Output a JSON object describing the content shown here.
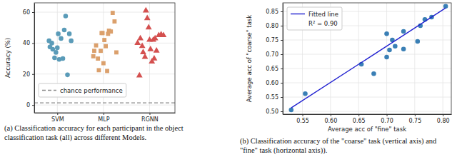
{
  "chart_data": [
    {
      "type": "scatter",
      "title": "(a) Classification accuracy for each participant in the object classification task (all) across different Models.",
      "ylabel": "Accuracy (%)",
      "xlim": [
        0.5,
        3.55
      ],
      "xticks": [
        {
          "value": 1,
          "label": "SVM"
        },
        {
          "value": 2,
          "label": "MLP"
        },
        {
          "value": 3,
          "label": "RGNN"
        }
      ],
      "ylim": [
        -5,
        66
      ],
      "yticks": [
        0,
        20,
        40,
        60
      ],
      "grid": true,
      "legend": "lower left",
      "series": [
        {
          "color": "#5a9bb8",
          "marker": "circle",
          "x": [
            0.82,
            0.84,
            0.88,
            0.9,
            0.94,
            0.97,
            1.0,
            1.02,
            1.04,
            1.08,
            1.12,
            1.15,
            1.18,
            1.22,
            1.26,
            1.3
          ],
          "values": [
            41.5,
            37.5,
            40,
            36,
            30.5,
            34,
            37,
            46,
            29.5,
            43,
            30,
            48.5,
            57.5,
            19.5,
            46,
            41.5
          ]
        },
        {
          "color": "#dba06c",
          "marker": "square",
          "x": [
            1.78,
            1.8,
            1.84,
            1.88,
            1.9,
            1.94,
            1.96,
            1.98,
            2.0,
            2.02,
            2.05,
            2.08,
            2.1,
            2.12,
            2.16,
            2.2,
            2.24,
            2.28
          ],
          "values": [
            31.5,
            35,
            38.5,
            30,
            22.5,
            35,
            46.5,
            46.5,
            27,
            42,
            38,
            22,
            46,
            48,
            47.5,
            59.5,
            54,
            34
          ]
        },
        {
          "color": "#d4504f",
          "marker": "triangle",
          "x": [
            2.74,
            2.78,
            2.8,
            2.84,
            2.86,
            2.9,
            2.92,
            2.95,
            2.98,
            3.0,
            3.02,
            3.05,
            3.08,
            3.1,
            3.12,
            3.15,
            3.2,
            3.25,
            3.3
          ],
          "values": [
            40,
            19,
            43,
            38,
            34,
            31,
            61,
            56,
            50,
            42,
            36,
            28,
            42,
            30,
            43,
            35,
            45,
            45.5,
            45
          ]
        },
        {
          "name": "chance performance",
          "type": "line",
          "line_style": "dashed",
          "color": "#888888",
          "x": [
            0.5,
            3.55
          ],
          "values": [
            1.4,
            1.4
          ]
        }
      ]
    },
    {
      "type": "scatter",
      "title": "(b) Classification accuracy of the \"coarse\" task (vertical axis) and \"fine\" task (horizontal axis)).",
      "xlabel": "Average acc of \"fine\" task",
      "ylabel": "Average acc of \"coarse\" task",
      "xlim": [
        0.515,
        0.815
      ],
      "xticks": [
        0.55,
        {
          "value": 0.6,
          "label": "0.60"
        },
        0.65,
        {
          "value": 0.7,
          "label": "0.70"
        },
        0.75,
        {
          "value": 0.8,
          "label": "0.80"
        }
      ],
      "ylim": [
        0.49,
        0.88
      ],
      "yticks": [
        {
          "value": 0.5,
          "label": "0.50"
        },
        0.55,
        {
          "value": 0.6,
          "label": "0.60"
        },
        0.65,
        {
          "value": 0.7,
          "label": "0.70"
        },
        0.75,
        {
          "value": 0.8,
          "label": "0.80"
        },
        0.85
      ],
      "grid": true,
      "legend": "upper left",
      "annotations": [
        "R² = 0.90"
      ],
      "series": [
        {
          "color": "#3a7fb5",
          "marker": "circle",
          "x": [
            0.53,
            0.555,
            0.655,
            0.677,
            0.7,
            0.7,
            0.705,
            0.71,
            0.715,
            0.73,
            0.73,
            0.755,
            0.76,
            0.768,
            0.78,
            0.805
          ],
          "values": [
            0.505,
            0.562,
            0.665,
            0.632,
            0.772,
            0.69,
            0.715,
            0.75,
            0.728,
            0.78,
            0.718,
            0.745,
            0.8,
            0.822,
            0.83,
            0.868
          ]
        },
        {
          "name": "Fitted line",
          "type": "line",
          "color": "#2020d0",
          "x": [
            0.53,
            0.805
          ],
          "values": [
            0.512,
            0.862
          ]
        }
      ]
    }
  ]
}
